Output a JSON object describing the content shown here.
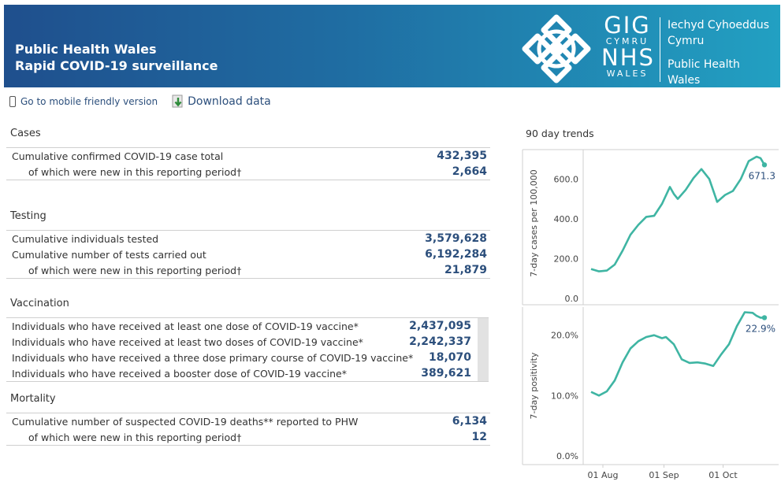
{
  "header": {
    "title_line1": "Public Health Wales",
    "title_line2": "Rapid COVID-19 surveillance",
    "logo": {
      "gig": "GIG",
      "cymru": "CYMRU",
      "nhs": "NHS",
      "wales": "WALES",
      "name_welsh_1": "Iechyd Cyhoeddus",
      "name_welsh_2": "Cymru",
      "name_english_1": "Public Health",
      "name_english_2": "Wales"
    }
  },
  "links": {
    "mobile": "Go to mobile friendly version",
    "download": "Download data"
  },
  "cases": {
    "title": "Cases",
    "rows": [
      {
        "label": "Cumulative confirmed COVID-19 case total",
        "value": "432,395"
      },
      {
        "label": "of which were new in this reporting period†",
        "value": "2,664"
      }
    ]
  },
  "testing": {
    "title": "Testing",
    "rows": [
      {
        "label": "Cumulative individuals tested",
        "value": "3,579,628"
      },
      {
        "label": "Cumulative number of tests carried out",
        "value": "6,192,284"
      },
      {
        "label": "of which were new in this reporting period†",
        "value": "21,879"
      }
    ]
  },
  "vaccination": {
    "title": "Vaccination",
    "rows": [
      {
        "label": "Individuals who have received at least one dose of COVID-19 vaccine*",
        "value": "2,437,095"
      },
      {
        "label": "Individuals who have received at least two doses of COVID-19 vaccine*",
        "value": "2,242,337"
      },
      {
        "label": "Individuals who have received a three dose primary course of COVID-19 vaccine*",
        "value": "18,070"
      },
      {
        "label": "Individuals who have received a booster dose of COVID-19 vaccine*",
        "value": "389,621"
      }
    ]
  },
  "mortality": {
    "title": "Mortality",
    "rows": [
      {
        "label": "Cumulative number of suspected COVID-19 deaths** reported to PHW",
        "value": "6,134"
      },
      {
        "label": "of which were new in this reporting period†",
        "value": "12"
      }
    ]
  },
  "trends": {
    "title": "90 day trends",
    "x_tick_labels": [
      "01 Aug",
      "01 Sep",
      "01 Oct"
    ]
  },
  "chart_data": [
    {
      "type": "line",
      "ylabel": "7-day cases per 100,000",
      "ylim": [
        0,
        720
      ],
      "y_ticks": [
        0,
        200,
        400,
        600
      ],
      "y_tick_labels": [
        "0.0",
        "200.0",
        "400.0",
        "600.0"
      ],
      "x_tick_labels": [
        "01 Aug",
        "01 Sep",
        "01 Oct"
      ],
      "x": [
        "2021-07-26",
        "2021-07-30",
        "2021-08-03",
        "2021-08-07",
        "2021-08-11",
        "2021-08-15",
        "2021-08-19",
        "2021-08-23",
        "2021-08-27",
        "2021-08-31",
        "2021-09-04",
        "2021-09-06",
        "2021-09-08",
        "2021-09-12",
        "2021-09-16",
        "2021-09-20",
        "2021-09-24",
        "2021-09-28",
        "2021-10-02",
        "2021-10-06",
        "2021-10-10",
        "2021-10-14",
        "2021-10-18",
        "2021-10-20",
        "2021-10-22"
      ],
      "values": [
        148,
        136,
        140,
        170,
        240,
        320,
        370,
        410,
        415,
        475,
        560,
        525,
        500,
        545,
        605,
        650,
        600,
        485,
        520,
        540,
        600,
        690,
        712,
        705,
        671.3
      ],
      "end_label": "671.3",
      "series_color": "#3fb5a3",
      "grid": false
    },
    {
      "type": "line",
      "ylabel": "7-day positivity",
      "ylim": [
        0,
        24
      ],
      "y_ticks": [
        0,
        10,
        20
      ],
      "y_tick_labels": [
        "0.0%",
        "10.0%",
        "20.0%"
      ],
      "x_tick_labels": [
        "01 Aug",
        "01 Sep",
        "01 Oct"
      ],
      "x": [
        "2021-07-26",
        "2021-07-30",
        "2021-08-03",
        "2021-08-07",
        "2021-08-11",
        "2021-08-15",
        "2021-08-19",
        "2021-08-23",
        "2021-08-27",
        "2021-08-31",
        "2021-09-02",
        "2021-09-06",
        "2021-09-10",
        "2021-09-14",
        "2021-09-18",
        "2021-09-22",
        "2021-09-26",
        "2021-09-30",
        "2021-10-04",
        "2021-10-08",
        "2021-10-12",
        "2021-10-16",
        "2021-10-18",
        "2021-10-20",
        "2021-10-22"
      ],
      "values": [
        10.6,
        10.0,
        10.7,
        12.5,
        15.5,
        17.8,
        19.0,
        19.7,
        20.0,
        19.5,
        19.7,
        18.5,
        16.0,
        15.4,
        15.5,
        15.3,
        14.9,
        16.8,
        18.5,
        21.5,
        23.8,
        23.7,
        23.2,
        22.9,
        22.9
      ],
      "end_label": "22.9%",
      "series_color": "#3fb5a3",
      "grid": false
    }
  ]
}
